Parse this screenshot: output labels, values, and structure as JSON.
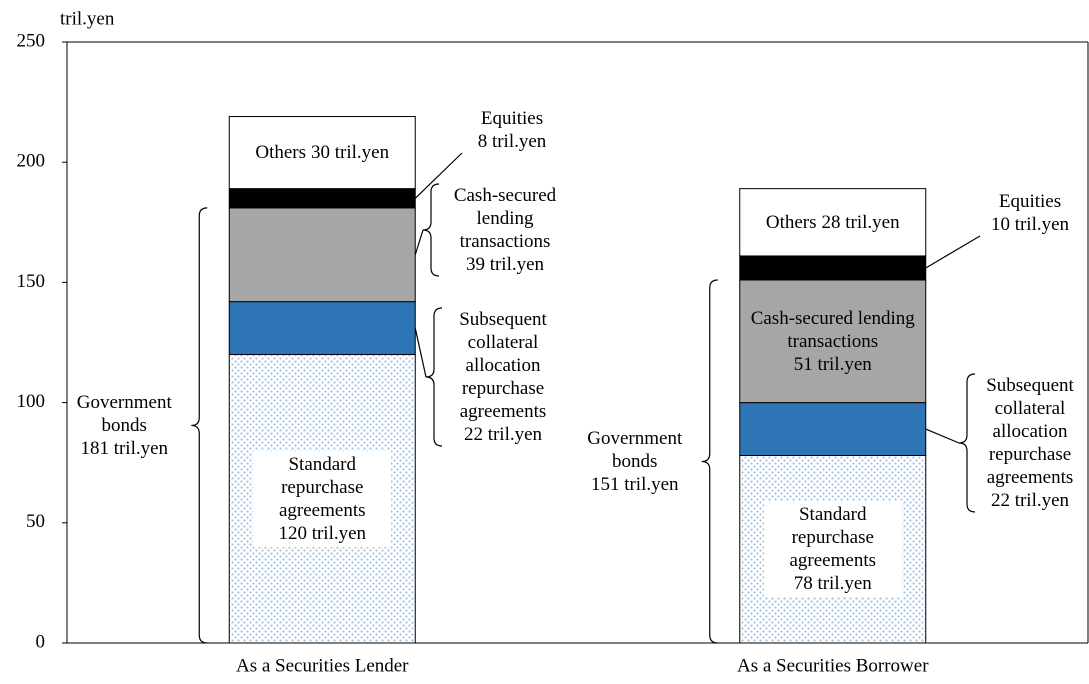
{
  "chart_data": {
    "type": "stacked_bar",
    "y_axis_label": "tril.yen",
    "categories": [
      "As a Securities Lender",
      "As a Securities Borrower"
    ],
    "ylim": [
      0,
      250
    ],
    "yticks": [
      0,
      50,
      100,
      150,
      200,
      250
    ],
    "series": [
      {
        "name": "Standard repurchase agreements",
        "color": "#9dc3e6",
        "pattern": "dotted",
        "values": [
          120,
          78
        ],
        "value_labels": [
          "120 tril.yen",
          "78 tril.yen"
        ]
      },
      {
        "name": "Subsequent collateral allocation repurchase agreements",
        "color": "#2e75b6",
        "values": [
          22,
          22
        ],
        "value_labels": [
          "22 tril.yen",
          "22 tril.yen"
        ]
      },
      {
        "name": "Cash-secured lending transactions",
        "color": "#a6a6a6",
        "values": [
          39,
          51
        ],
        "value_labels": [
          "39 tril.yen",
          "51 tril.yen"
        ]
      },
      {
        "name": "Equities",
        "color": "#000000",
        "values": [
          8,
          10
        ],
        "value_labels": [
          "8 tril.yen",
          "10 tril.yen"
        ]
      },
      {
        "name": "Others",
        "color": "#ffffff",
        "values": [
          30,
          28
        ],
        "value_labels": [
          "30 tril.yen",
          "28 tril.yen"
        ]
      }
    ],
    "annotations": [
      {
        "label": "Government bonds",
        "values": [
          181,
          151
        ],
        "value_labels": [
          "181 tril.yen",
          "151 tril.yen"
        ]
      }
    ]
  }
}
